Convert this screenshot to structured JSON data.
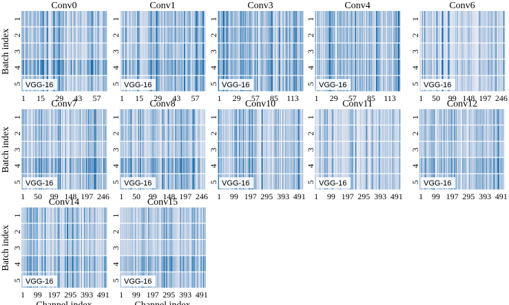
{
  "chart_data": [
    {
      "type": "heatmap",
      "title": "Conv0",
      "channels": 64,
      "x_ticks": [
        "1",
        "15",
        "29",
        "43",
        "57"
      ],
      "y_ticks": [
        "1",
        "2",
        "3",
        "4",
        "5"
      ],
      "annotation": "VGG-16",
      "ylabel": "Batch index",
      "xlabel": ""
    },
    {
      "type": "heatmap",
      "title": "Conv1",
      "channels": 64,
      "x_ticks": [
        "1",
        "15",
        "29",
        "43",
        "57"
      ],
      "y_ticks": [
        "1",
        "2",
        "3",
        "4",
        "5"
      ],
      "annotation": "VGG-16",
      "ylabel": "",
      "xlabel": ""
    },
    {
      "type": "heatmap",
      "title": "Conv3",
      "channels": 128,
      "x_ticks": [
        "1",
        "29",
        "57",
        "85",
        "113"
      ],
      "y_ticks": [
        "1",
        "2",
        "3",
        "4",
        "5"
      ],
      "annotation": "VGG-16",
      "ylabel": "",
      "xlabel": ""
    },
    {
      "type": "heatmap",
      "title": "Conv4",
      "channels": 128,
      "x_ticks": [
        "1",
        "29",
        "57",
        "85",
        "113"
      ],
      "y_ticks": [
        "1",
        "2",
        "3",
        "4",
        "5"
      ],
      "annotation": "VGG-16",
      "ylabel": "",
      "xlabel": ""
    },
    {
      "type": "heatmap",
      "title": "Conv6",
      "channels": 256,
      "x_ticks": [
        "1",
        "50",
        "99",
        "148",
        "197",
        "246"
      ],
      "y_ticks": [
        "1",
        "2",
        "3",
        "4",
        "5"
      ],
      "annotation": "VGG-16",
      "ylabel": "",
      "xlabel": ""
    },
    {
      "type": "heatmap",
      "title": "Conv7",
      "channels": 256,
      "x_ticks": [
        "1",
        "50",
        "99",
        "148",
        "197",
        "246"
      ],
      "y_ticks": [
        "1",
        "2",
        "3",
        "4",
        "5"
      ],
      "annotation": "VGG-16",
      "ylabel": "Batch index",
      "xlabel": ""
    },
    {
      "type": "heatmap",
      "title": "Conv8",
      "channels": 256,
      "x_ticks": [
        "1",
        "50",
        "99",
        "148",
        "197",
        "246"
      ],
      "y_ticks": [
        "1",
        "2",
        "3",
        "4",
        "5"
      ],
      "annotation": "VGG-16",
      "ylabel": "",
      "xlabel": ""
    },
    {
      "type": "heatmap",
      "title": "Conv10",
      "channels": 512,
      "x_ticks": [
        "1",
        "99",
        "197",
        "295",
        "393",
        "491"
      ],
      "y_ticks": [
        "1",
        "2",
        "3",
        "4",
        "5"
      ],
      "annotation": "VGG-16",
      "ylabel": "",
      "xlabel": ""
    },
    {
      "type": "heatmap",
      "title": "Conv11",
      "channels": 512,
      "x_ticks": [
        "1",
        "99",
        "197",
        "295",
        "393",
        "491"
      ],
      "y_ticks": [
        "1",
        "2",
        "3",
        "4",
        "5"
      ],
      "annotation": "VGG-16",
      "ylabel": "",
      "xlabel": ""
    },
    {
      "type": "heatmap",
      "title": "Conv12",
      "channels": 512,
      "x_ticks": [
        "1",
        "99",
        "197",
        "295",
        "393",
        "491"
      ],
      "y_ticks": [
        "1",
        "2",
        "3",
        "4",
        "5"
      ],
      "annotation": "VGG-16",
      "ylabel": "",
      "xlabel": ""
    },
    {
      "type": "heatmap",
      "title": "Conv14",
      "channels": 512,
      "x_ticks": [
        "1",
        "99",
        "197",
        "295",
        "393",
        "491"
      ],
      "y_ticks": [
        "1",
        "2",
        "3",
        "4",
        "5"
      ],
      "annotation": "VGG-16",
      "ylabel": "Batch index",
      "xlabel": "Channel index"
    },
    {
      "type": "heatmap",
      "title": "Conv15",
      "channels": 512,
      "x_ticks": [
        "1",
        "99",
        "197",
        "295",
        "393",
        "491"
      ],
      "y_ticks": [
        "1",
        "2",
        "3",
        "4",
        "5"
      ],
      "annotation": "VGG-16",
      "ylabel": "",
      "xlabel": "Channel index"
    }
  ],
  "colors": {
    "low": "#eeedf6",
    "high": "#1f6fae",
    "row_gap": "#ffffff"
  }
}
